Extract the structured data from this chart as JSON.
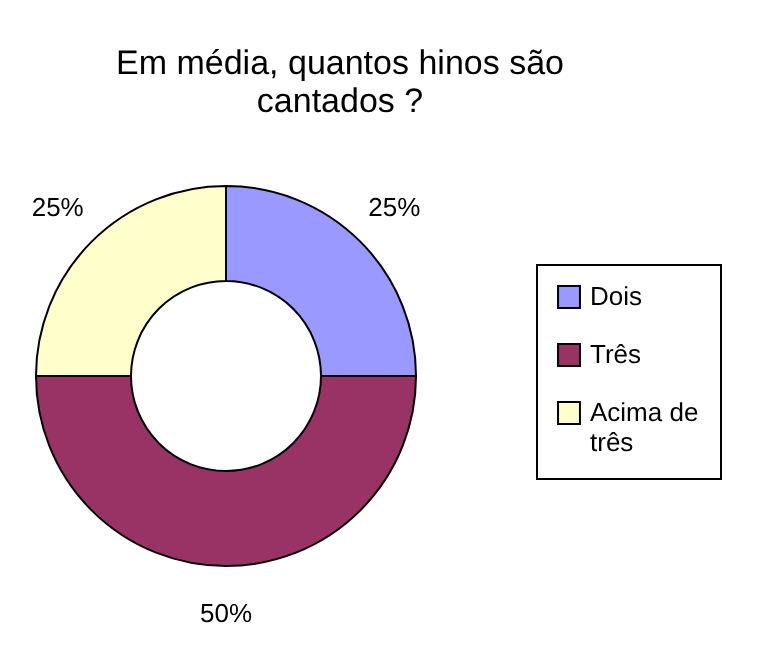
{
  "chart_data": {
    "type": "donut",
    "title": "Em média, quantos hinos são cantados ?",
    "categories": [
      "Dois",
      "Três",
      "Acima de três"
    ],
    "values": [
      25,
      50,
      25
    ],
    "colors": [
      "#9999ff",
      "#993366",
      "#ffffcc"
    ],
    "value_labels": [
      "25%",
      "50%",
      "25%"
    ],
    "legend": "right"
  }
}
